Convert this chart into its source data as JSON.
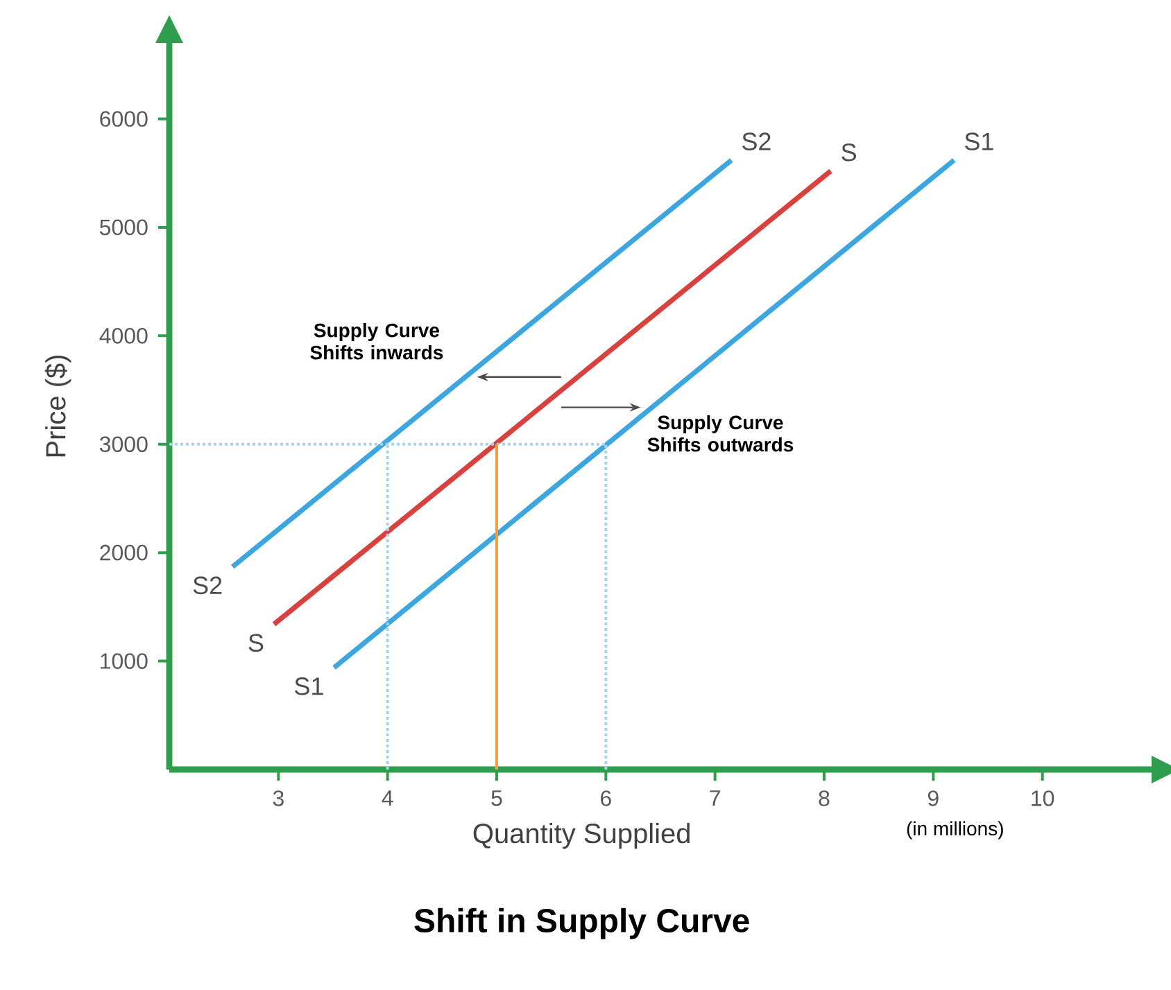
{
  "chart_data": {
    "type": "line",
    "title": "Shift in Supply Curve",
    "xlabel": "Quantity Supplied",
    "ylabel": "Price ($)",
    "xlim": [
      2,
      11
    ],
    "ylim": [
      0,
      6700
    ],
    "xticks": [
      3,
      4,
      5,
      6,
      7,
      8,
      9,
      10
    ],
    "yticks": [
      1000,
      2000,
      3000,
      4000,
      5000,
      6000
    ],
    "grid": false,
    "marker": "none",
    "series": [
      {
        "name": "S2",
        "color": "#3ba7de",
        "x": [
          2.58,
          7.15
        ],
        "values": [
          1870,
          5620
        ]
      },
      {
        "name": "S",
        "color": "#d9413f",
        "x": [
          2.96,
          8.06
        ],
        "values": [
          1340,
          5520
        ]
      },
      {
        "name": "S1",
        "color": "#3ba7de",
        "x": [
          3.51,
          9.19
        ],
        "values": [
          940,
          5620
        ]
      },
      {
        "color": "#a3d5f0",
        "line_style": "dotted",
        "x": [
          2,
          6
        ],
        "values": [
          3000,
          3000
        ]
      },
      {
        "color": "#a3d5f0",
        "line_style": "dotted",
        "x": [
          4,
          4
        ],
        "values": [
          0,
          3000
        ]
      },
      {
        "color": "#f0a040",
        "line_style": "solid",
        "x": [
          5,
          5
        ],
        "values": [
          0,
          3000
        ]
      },
      {
        "color": "#a3d5f0",
        "line_style": "dotted",
        "x": [
          6,
          6
        ],
        "values": [
          0,
          3000
        ]
      }
    ],
    "annotations": [
      "Supply Curve Shifts inwards",
      "Supply Curve Shifts outwards",
      "(in millions)"
    ]
  }
}
